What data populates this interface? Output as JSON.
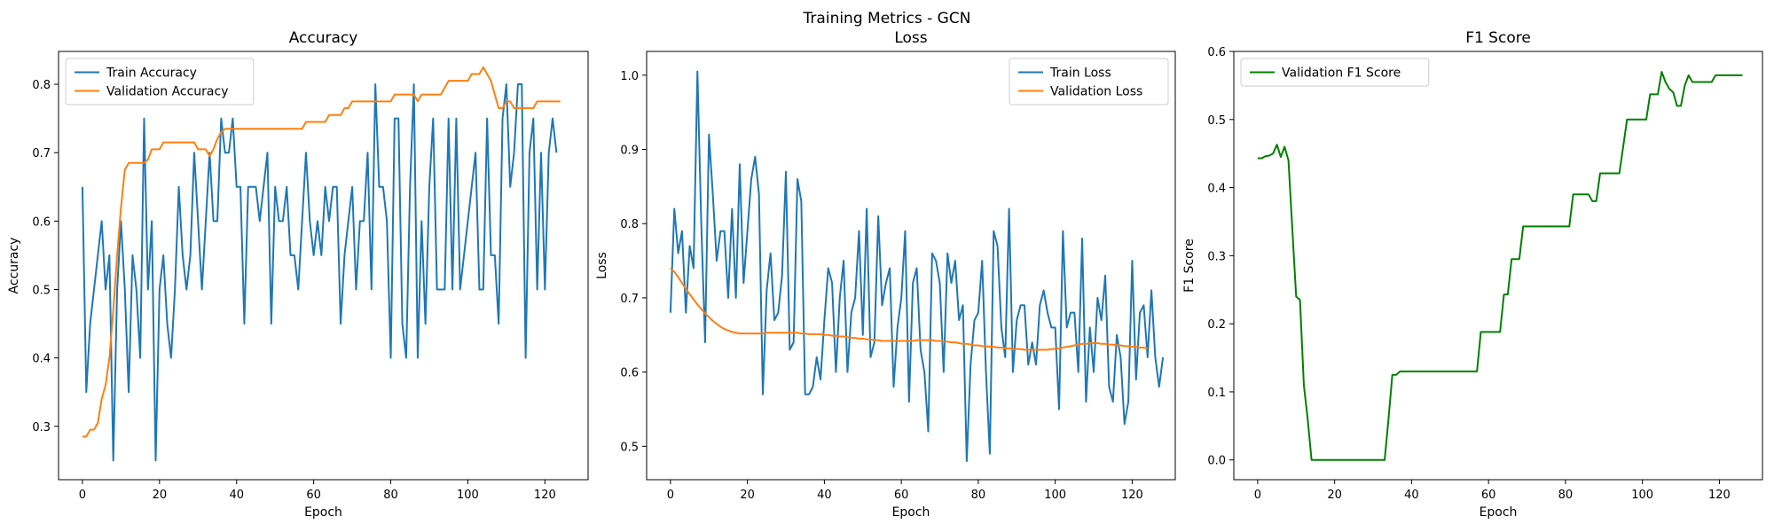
{
  "suptitle": "Training Metrics - GCN",
  "colors": {
    "blue": "#1f77b4",
    "orange": "#ff7f0e",
    "green": "#008000"
  },
  "chart_data": [
    {
      "type": "line",
      "title": "Accuracy",
      "xlabel": "Epoch",
      "ylabel": "Accuracy",
      "xlim": [
        -6.2,
        131.2
      ],
      "ylim": [
        0.222,
        0.848
      ],
      "xticks": [
        0,
        20,
        40,
        60,
        80,
        100,
        120
      ],
      "yticks": [
        0.3,
        0.4,
        0.5,
        0.6,
        0.7,
        0.8
      ],
      "legend": "upper-left",
      "grid": false,
      "series": [
        {
          "name": "Train Accuracy",
          "color": "#1f77b4",
          "values": [
            0.65,
            0.35,
            0.45,
            0.5,
            0.55,
            0.6,
            0.5,
            0.55,
            0.25,
            0.5,
            0.6,
            0.5,
            0.35,
            0.55,
            0.5,
            0.4,
            0.75,
            0.5,
            0.6,
            0.25,
            0.5,
            0.55,
            0.45,
            0.4,
            0.5,
            0.65,
            0.55,
            0.5,
            0.55,
            0.7,
            0.6,
            0.5,
            0.6,
            0.7,
            0.6,
            0.6,
            0.75,
            0.7,
            0.7,
            0.75,
            0.65,
            0.65,
            0.45,
            0.65,
            0.65,
            0.65,
            0.6,
            0.65,
            0.7,
            0.45,
            0.65,
            0.6,
            0.6,
            0.65,
            0.55,
            0.55,
            0.5,
            0.6,
            0.7,
            0.6,
            0.55,
            0.6,
            0.55,
            0.65,
            0.6,
            0.65,
            0.65,
            0.45,
            0.55,
            0.6,
            0.65,
            0.5,
            0.6,
            0.6,
            0.7,
            0.5,
            0.8,
            0.65,
            0.65,
            0.6,
            0.4,
            0.75,
            0.75,
            0.45,
            0.4,
            0.65,
            0.8,
            0.4,
            0.6,
            0.45,
            0.65,
            0.75,
            0.5,
            0.5,
            0.5,
            0.75,
            0.5,
            0.75,
            0.5,
            0.55,
            0.6,
            0.65,
            0.7,
            0.5,
            0.5,
            0.75,
            0.55,
            0.55,
            0.45,
            0.75,
            0.8,
            0.65,
            0.7,
            0.8,
            0.8,
            0.4,
            0.7,
            0.75,
            0.5,
            0.7,
            0.5,
            0.7,
            0.75,
            0.7
          ]
        },
        {
          "name": "Validation Accuracy",
          "color": "#ff7f0e",
          "values": [
            0.285,
            0.285,
            0.295,
            0.295,
            0.305,
            0.34,
            0.36,
            0.4,
            0.47,
            0.55,
            0.62,
            0.675,
            0.685,
            0.685,
            0.685,
            0.685,
            0.685,
            0.69,
            0.705,
            0.705,
            0.705,
            0.715,
            0.715,
            0.715,
            0.715,
            0.715,
            0.715,
            0.715,
            0.715,
            0.715,
            0.705,
            0.705,
            0.705,
            0.695,
            0.705,
            0.72,
            0.73,
            0.735,
            0.735,
            0.735,
            0.735,
            0.735,
            0.735,
            0.735,
            0.735,
            0.735,
            0.735,
            0.735,
            0.735,
            0.735,
            0.735,
            0.735,
            0.735,
            0.735,
            0.735,
            0.735,
            0.735,
            0.735,
            0.745,
            0.745,
            0.745,
            0.745,
            0.745,
            0.745,
            0.755,
            0.755,
            0.755,
            0.755,
            0.765,
            0.765,
            0.775,
            0.775,
            0.775,
            0.775,
            0.775,
            0.775,
            0.775,
            0.775,
            0.775,
            0.775,
            0.775,
            0.785,
            0.785,
            0.785,
            0.785,
            0.785,
            0.785,
            0.775,
            0.785,
            0.785,
            0.785,
            0.785,
            0.785,
            0.785,
            0.795,
            0.805,
            0.805,
            0.805,
            0.805,
            0.805,
            0.805,
            0.815,
            0.815,
            0.815,
            0.825,
            0.815,
            0.805,
            0.785,
            0.765,
            0.765,
            0.775,
            0.775,
            0.765,
            0.765,
            0.765,
            0.765,
            0.765,
            0.765,
            0.775,
            0.775,
            0.775,
            0.775,
            0.775,
            0.775,
            0.775
          ]
        }
      ]
    },
    {
      "type": "line",
      "title": "Loss",
      "xlabel": "Epoch",
      "ylabel": "Loss",
      "xlim": [
        -6.2,
        131.2
      ],
      "ylim": [
        0.455,
        1.032
      ],
      "xticks": [
        0,
        20,
        40,
        60,
        80,
        100,
        120
      ],
      "yticks": [
        0.5,
        0.6,
        0.7,
        0.8,
        0.9,
        1.0
      ],
      "legend": "upper-right",
      "grid": false,
      "series": [
        {
          "name": "Train Loss",
          "color": "#1f77b4",
          "values": [
            0.68,
            0.82,
            0.76,
            0.79,
            0.68,
            0.77,
            0.74,
            1.005,
            0.8,
            0.64,
            0.92,
            0.84,
            0.75,
            0.79,
            0.79,
            0.7,
            0.82,
            0.7,
            0.88,
            0.72,
            0.79,
            0.86,
            0.89,
            0.84,
            0.57,
            0.71,
            0.76,
            0.67,
            0.68,
            0.73,
            0.87,
            0.63,
            0.64,
            0.86,
            0.83,
            0.57,
            0.57,
            0.58,
            0.62,
            0.59,
            0.67,
            0.74,
            0.72,
            0.6,
            0.7,
            0.75,
            0.6,
            0.68,
            0.7,
            0.79,
            0.65,
            0.82,
            0.62,
            0.64,
            0.81,
            0.69,
            0.72,
            0.74,
            0.58,
            0.66,
            0.7,
            0.79,
            0.56,
            0.72,
            0.74,
            0.63,
            0.6,
            0.52,
            0.76,
            0.75,
            0.72,
            0.6,
            0.76,
            0.72,
            0.75,
            0.67,
            0.69,
            0.48,
            0.61,
            0.67,
            0.68,
            0.75,
            0.6,
            0.49,
            0.79,
            0.77,
            0.66,
            0.62,
            0.82,
            0.6,
            0.67,
            0.69,
            0.69,
            0.61,
            0.64,
            0.61,
            0.69,
            0.71,
            0.68,
            0.66,
            0.66,
            0.55,
            0.79,
            0.66,
            0.68,
            0.68,
            0.6,
            0.78,
            0.56,
            0.66,
            0.6,
            0.7,
            0.67,
            0.73,
            0.58,
            0.56,
            0.65,
            0.62,
            0.53,
            0.56,
            0.75,
            0.59,
            0.68,
            0.69,
            0.62,
            0.71,
            0.62,
            0.58,
            0.62
          ]
        },
        {
          "name": "Validation Loss",
          "color": "#ff7f0e",
          "values": [
            0.74,
            0.735,
            0.728,
            0.72,
            0.712,
            0.705,
            0.698,
            0.691,
            0.685,
            0.679,
            0.674,
            0.669,
            0.665,
            0.661,
            0.658,
            0.656,
            0.654,
            0.653,
            0.652,
            0.652,
            0.652,
            0.652,
            0.652,
            0.652,
            0.652,
            0.653,
            0.653,
            0.653,
            0.653,
            0.653,
            0.653,
            0.653,
            0.653,
            0.653,
            0.652,
            0.652,
            0.651,
            0.651,
            0.651,
            0.651,
            0.65,
            0.65,
            0.649,
            0.649,
            0.648,
            0.648,
            0.647,
            0.646,
            0.646,
            0.645,
            0.645,
            0.644,
            0.644,
            0.643,
            0.643,
            0.642,
            0.642,
            0.642,
            0.642,
            0.642,
            0.642,
            0.642,
            0.642,
            0.642,
            0.643,
            0.643,
            0.643,
            0.643,
            0.643,
            0.642,
            0.642,
            0.641,
            0.641,
            0.64,
            0.64,
            0.639,
            0.638,
            0.638,
            0.637,
            0.636,
            0.636,
            0.635,
            0.635,
            0.634,
            0.634,
            0.633,
            0.633,
            0.632,
            0.632,
            0.631,
            0.631,
            0.631,
            0.63,
            0.63,
            0.63,
            0.63,
            0.63,
            0.63,
            0.63,
            0.631,
            0.631,
            0.632,
            0.633,
            0.634,
            0.635,
            0.636,
            0.637,
            0.638,
            0.638,
            0.639,
            0.639,
            0.639,
            0.638,
            0.638,
            0.637,
            0.637,
            0.636,
            0.636,
            0.635,
            0.635,
            0.634,
            0.634,
            0.633,
            0.633,
            0.632
          ]
        }
      ]
    },
    {
      "type": "line",
      "title": "F1 Score",
      "xlabel": "Epoch",
      "ylabel": "F1 Score",
      "xlim": [
        -6.2,
        131.2
      ],
      "ylim": [
        -0.029,
        0.6
      ],
      "xticks": [
        0,
        20,
        40,
        60,
        80,
        100,
        120
      ],
      "yticks": [
        0.0,
        0.1,
        0.2,
        0.3,
        0.4,
        0.5,
        0.6
      ],
      "legend": "upper-left",
      "grid": false,
      "series": [
        {
          "name": "Validation F1 Score",
          "color": "#008000",
          "values": [
            0.443,
            0.443,
            0.446,
            0.447,
            0.45,
            0.463,
            0.445,
            0.46,
            0.44,
            0.34,
            0.24,
            0.235,
            0.11,
            0.06,
            0.0,
            0.0,
            0.0,
            0.0,
            0.0,
            0.0,
            0.0,
            0.0,
            0.0,
            0.0,
            0.0,
            0.0,
            0.0,
            0.0,
            0.0,
            0.0,
            0.0,
            0.0,
            0.0,
            0.0,
            0.06,
            0.125,
            0.125,
            0.13,
            0.13,
            0.13,
            0.13,
            0.13,
            0.13,
            0.13,
            0.13,
            0.13,
            0.13,
            0.13,
            0.13,
            0.13,
            0.13,
            0.13,
            0.13,
            0.13,
            0.13,
            0.13,
            0.13,
            0.13,
            0.188,
            0.188,
            0.188,
            0.188,
            0.188,
            0.188,
            0.243,
            0.243,
            0.295,
            0.295,
            0.295,
            0.343,
            0.343,
            0.343,
            0.343,
            0.343,
            0.343,
            0.343,
            0.343,
            0.343,
            0.343,
            0.343,
            0.343,
            0.343,
            0.39,
            0.39,
            0.39,
            0.39,
            0.39,
            0.38,
            0.38,
            0.421,
            0.421,
            0.421,
            0.421,
            0.421,
            0.421,
            0.46,
            0.5,
            0.5,
            0.5,
            0.5,
            0.5,
            0.5,
            0.537,
            0.537,
            0.537,
            0.57,
            0.555,
            0.545,
            0.54,
            0.52,
            0.52,
            0.55,
            0.565,
            0.555,
            0.555,
            0.555,
            0.555,
            0.555,
            0.555,
            0.565,
            0.565,
            0.565,
            0.565,
            0.565,
            0.565,
            0.565,
            0.565
          ]
        }
      ]
    }
  ]
}
